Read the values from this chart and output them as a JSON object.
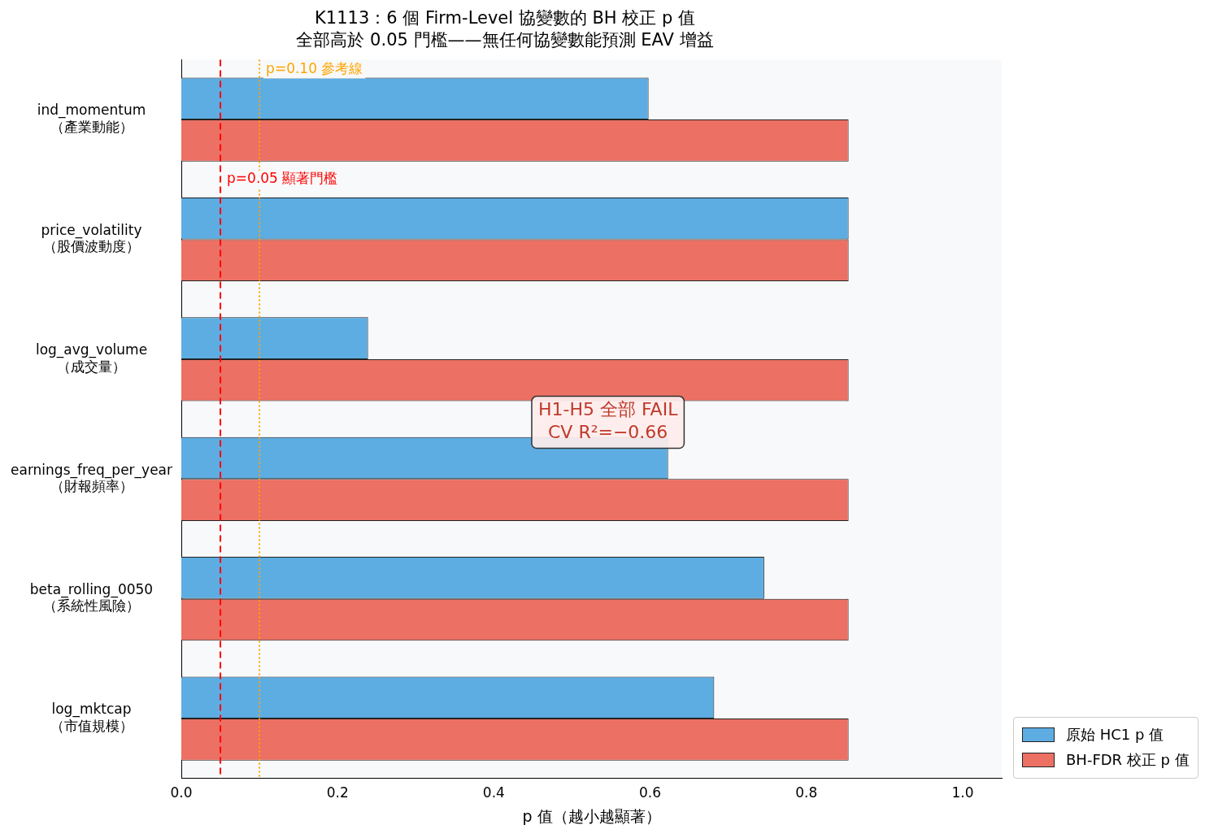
{
  "chart_data": {
    "type": "bar",
    "orientation": "horizontal",
    "title": "K1113：6 個 Firm-Level 協變數的 BH 校正 p 值",
    "subtitle": "全部高於 0.05 門檻——無任何協變數能預測 EAV 增益",
    "xlabel": "p 值（越小越顯著）",
    "categories": [
      "ind_momentum\n（產業動能）",
      "price_volatility\n（股價波動度）",
      "log_avg_volume\n（成交量）",
      "earnings_freq_per_year\n（財報頻率）",
      "beta_rolling_0050\n（系統性風險）",
      "log_mktcap\n（市值規模）"
    ],
    "series": [
      {
        "name": "原始 HC1 p 值",
        "color": "#5dade2",
        "values": [
          0.598,
          0.854,
          0.239,
          0.623,
          0.746,
          0.682
        ]
      },
      {
        "name": "BH-FDR 校正 p 值",
        "color": "#ec7063",
        "values": [
          0.854,
          0.854,
          0.854,
          0.854,
          0.854,
          0.854
        ]
      }
    ],
    "xlim": [
      0,
      1.05
    ],
    "xticks": [
      {
        "value": 0,
        "label": "0.0"
      },
      0.2,
      0.4,
      0.6,
      0.8,
      {
        "value": 1,
        "label": "1.0"
      }
    ],
    "ref_lines": [
      {
        "axis": "x",
        "value": 0.05,
        "label": "p=0.05 顯著門檻",
        "color": "#ff0000",
        "line_style": "dashed"
      },
      {
        "axis": "x",
        "value": 0.1,
        "label": "p=0.10 參考線",
        "color": "#ffa500",
        "line_style": "dotted"
      }
    ],
    "annotations": [
      "H1-H5 全部 FAIL\nCV R²=−0.66"
    ],
    "grid": false,
    "legend": "bottom right"
  }
}
